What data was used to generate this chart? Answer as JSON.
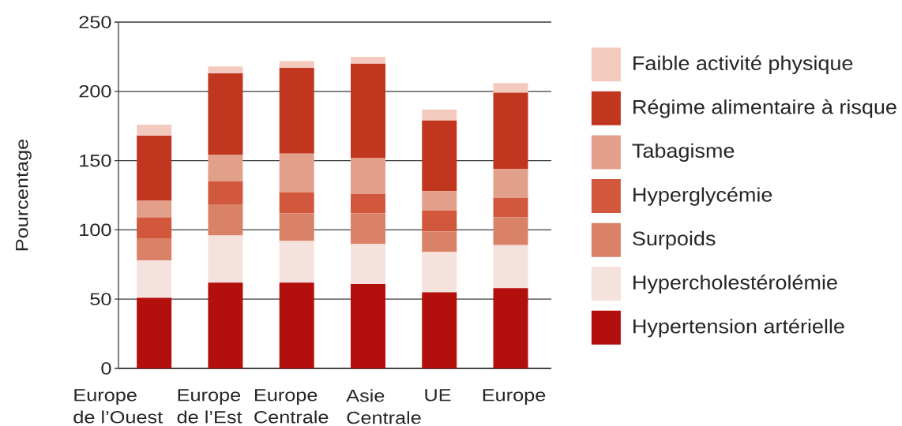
{
  "chart_data": {
    "type": "bar",
    "stacked": true,
    "ylabel": "Pourcentage",
    "categories": [
      "Europe de l’Ouest",
      "Europe de l’Est",
      "Europe Centrale",
      "Asie Centrale",
      "UE",
      "Europe"
    ],
    "series": [
      {
        "name": "Hypertension artérielle",
        "color": "#b30f0c",
        "values": [
          51,
          62,
          62,
          61,
          55,
          58
        ]
      },
      {
        "name": "Hypercholestérolémie",
        "color": "#f6e2dd",
        "values": [
          27,
          34,
          30,
          29,
          29,
          31
        ]
      },
      {
        "name": "Surpoids",
        "color": "#da8268",
        "values": [
          16,
          22,
          20,
          22,
          15,
          20
        ]
      },
      {
        "name": "Hyperglycémie",
        "color": "#d2583d",
        "values": [
          15,
          17,
          15,
          14,
          15,
          14
        ]
      },
      {
        "name": "Tabagisme",
        "color": "#e2a08a",
        "values": [
          12,
          19,
          28,
          26,
          14,
          21
        ]
      },
      {
        "name": "Régime alimentaire à risque",
        "color": "#c0361f",
        "values": [
          47,
          59,
          62,
          68,
          51,
          55
        ]
      },
      {
        "name": "Faible activité physique",
        "color": "#f3cbbe",
        "values": [
          8,
          5,
          5,
          5,
          8,
          7
        ]
      }
    ],
    "ylim": [
      0,
      250
    ],
    "yticks": [
      0,
      50,
      100,
      150,
      200,
      250
    ],
    "grid": "y",
    "legend": "right"
  }
}
